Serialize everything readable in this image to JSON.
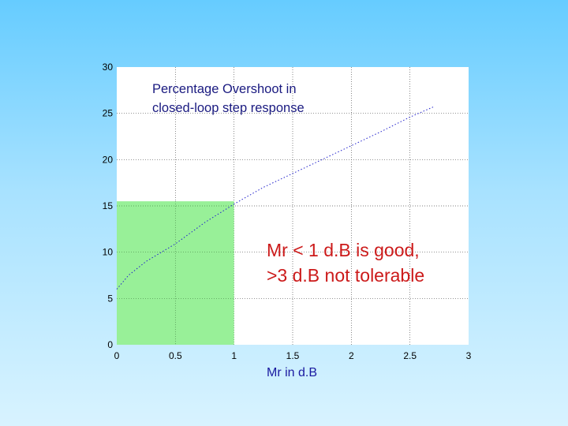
{
  "chart_data": {
    "type": "line",
    "xlim": [
      0,
      3
    ],
    "ylim": [
      0,
      30
    ],
    "xticks": [
      "0",
      "0.5",
      "1",
      "1.5",
      "2",
      "2.5",
      "3"
    ],
    "yticks": [
      "0",
      "5",
      "10",
      "15",
      "20",
      "25",
      "30"
    ],
    "xlabel": "Mr in d.B",
    "ylabel": "",
    "grid": true,
    "series": [
      {
        "x": [
          0.0,
          0.1,
          0.25,
          0.5,
          0.75,
          1.0,
          1.25,
          1.5,
          1.75,
          2.0,
          2.25,
          2.5,
          2.7
        ],
        "y": [
          6.0,
          7.5,
          9.0,
          10.9,
          13.2,
          15.2,
          17.0,
          18.5,
          20.0,
          21.5,
          23.0,
          24.6,
          25.7
        ],
        "color": "#2222cc",
        "style": "dotted"
      }
    ],
    "region": {
      "x": [
        0,
        1
      ],
      "y": [
        0,
        15.5
      ],
      "color": "#98f098"
    },
    "annotations": [
      {
        "lines": [
          "Percentage Overshoot in",
          "closed-loop step response"
        ],
        "color": "#1a1a80"
      },
      {
        "lines": [
          "Mr < 1 d.B is good,",
          ">3 d.B not tolerable"
        ],
        "color": "#cc1a1a"
      }
    ]
  }
}
